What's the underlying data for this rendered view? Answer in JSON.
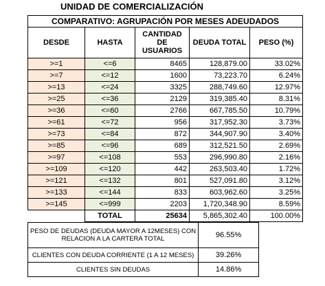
{
  "title": "UNIDAD DE COMERCIALIZACIÓN",
  "table": {
    "subtitle": "COMPARATIVO: AGRUPACIÓN POR MESES ADEUDADOS",
    "headers": [
      "DESDE",
      "HASTA",
      "CANTIDAD DE USUARIOS",
      "DEUDA TOTAL",
      "PESO (%)"
    ],
    "rows": [
      [
        ">=1",
        "<=6",
        "8465",
        "128,879.00",
        "33.02%"
      ],
      [
        ">=7",
        "<=12",
        "1600",
        "73,223.70",
        "6.24%"
      ],
      [
        ">=13",
        "<=24",
        "3325",
        "288,749.60",
        "12.97%"
      ],
      [
        ">=25",
        "<=36",
        "2129",
        "319,385.40",
        "8.31%"
      ],
      [
        ">=36",
        "<=60",
        "2766",
        "667,785.50",
        "10.79%"
      ],
      [
        ">=61",
        "<=72",
        "956",
        "317,952.30",
        "3.73%"
      ],
      [
        ">=73",
        "<=84",
        "872",
        "344,907.90",
        "3.40%"
      ],
      [
        ">=85",
        "<=96",
        "689",
        "312,521.50",
        "2.69%"
      ],
      [
        ">=97",
        "<=108",
        "553",
        "296,990.80",
        "2.16%"
      ],
      [
        ">=109",
        "<=120",
        "442",
        "263,503.40",
        "1.72%"
      ],
      [
        ">=121",
        "<=132",
        "801",
        "527,091.80",
        "3.12%"
      ],
      [
        ">=133",
        "<=144",
        "833",
        "603,962.60",
        "3.25%"
      ],
      [
        ">=145",
        "<=999",
        "2203",
        "1,720,348.90",
        "8.59%"
      ]
    ],
    "total": [
      "TOTAL",
      "25634",
      "5,865,302.40",
      "100.00%"
    ]
  },
  "summary": [
    {
      "label": [
        "PESO DE DEUDAS (DEUDA MAYOR A 12MESES) CON",
        "RELACION A LA CARTERA TOTAL"
      ],
      "value": "96.55%"
    },
    {
      "label": [
        "CLIENTES CON DEUDA CORRIENTE (1 A 12 MESES)"
      ],
      "value": "39.26%"
    },
    {
      "label": [
        "CLIENTES SIN DEUDAS"
      ],
      "value": "14.86%"
    }
  ]
}
